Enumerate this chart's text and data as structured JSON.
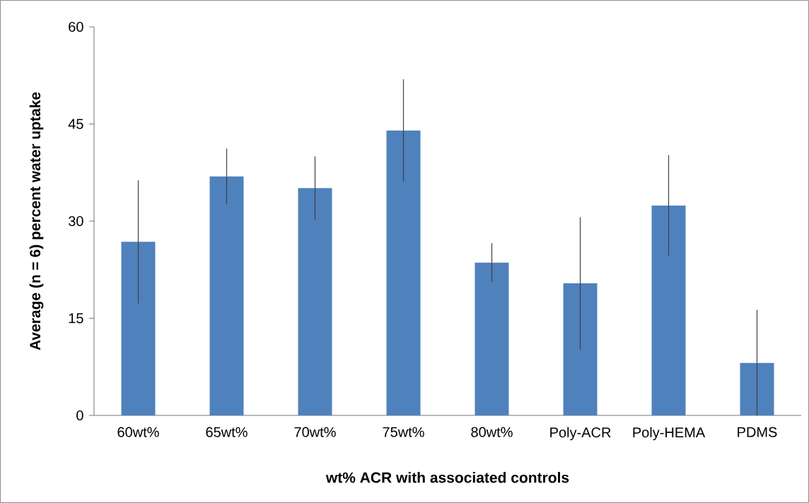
{
  "chart_data": {
    "type": "bar",
    "xlabel": "wt% ACR with associated controls",
    "ylabel": "Average (n = 6) percent water uptake",
    "categories": [
      "60wt%",
      "65wt%",
      "70wt%",
      "75wt%",
      "80wt%",
      "Poly-ACR",
      "Poly-HEMA",
      "PDMS"
    ],
    "values": [
      26.8,
      36.9,
      35.1,
      44.0,
      23.6,
      20.4,
      32.4,
      8.1
    ],
    "errors": [
      9.5,
      4.3,
      4.9,
      7.9,
      3.0,
      10.2,
      7.8,
      8.2
    ],
    "color": "#4f81bd",
    "ylim": [
      0,
      60
    ],
    "yticks": [
      0,
      15,
      30,
      45,
      60
    ],
    "grid": false
  }
}
